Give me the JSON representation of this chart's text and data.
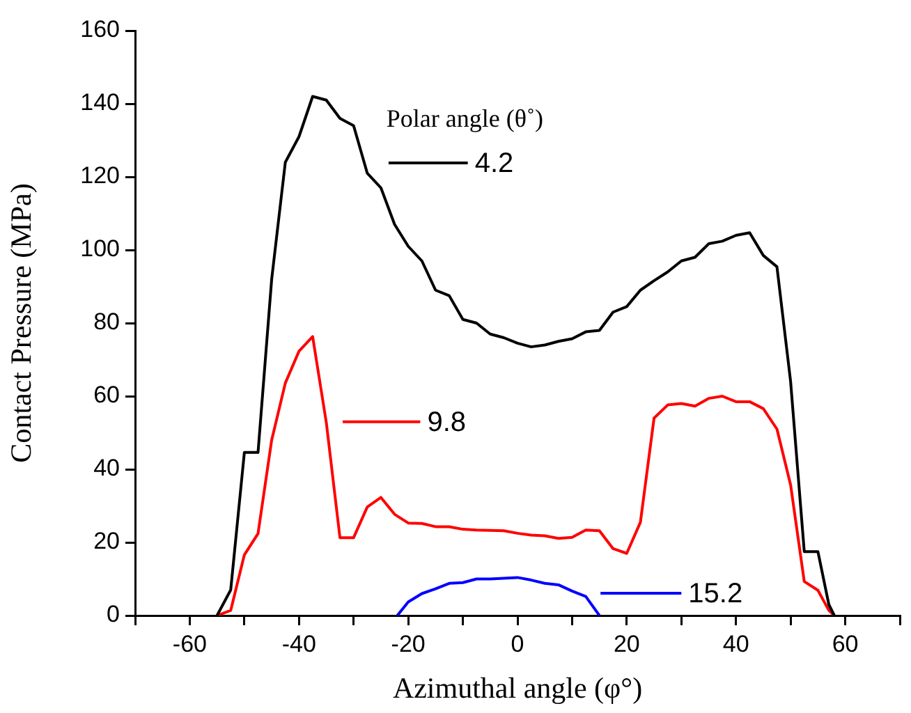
{
  "chart_data": {
    "type": "line",
    "xlabel": "Azimuthal angle (φ°)",
    "ylabel": "Contact Pressure (MPa)",
    "legend_title": "Polar angle (θ˚)",
    "xlim": [
      -70,
      70
    ],
    "ylim": [
      0,
      160
    ],
    "xticks": [
      {
        "value": -70,
        "label": null
      },
      -60,
      {
        "value": -50,
        "label": null
      },
      -40,
      {
        "value": -30,
        "label": null
      },
      -20,
      {
        "value": -10,
        "label": null
      },
      0,
      {
        "value": 10,
        "label": null
      },
      20,
      {
        "value": 30,
        "label": null
      },
      40,
      {
        "value": 50,
        "label": null
      },
      60,
      {
        "value": 70,
        "label": null
      }
    ],
    "yticks": [
      0,
      20,
      40,
      60,
      80,
      100,
      120,
      140,
      160
    ],
    "grid": false,
    "legend": "bottom right",
    "marker": "none",
    "line_style": "solid",
    "series": [
      {
        "name": "4.2",
        "color": "#000000",
        "x": [
          -55,
          -52.5,
          -50,
          -47.5,
          -45,
          -42.5,
          -40,
          -37.5,
          -35,
          -32.5,
          -30,
          -27.5,
          -25,
          -22.5,
          -20,
          -17.5,
          -15,
          -12.5,
          -10,
          -7.5,
          -5,
          -2.5,
          0,
          2.5,
          5,
          7.5,
          10,
          12.5,
          15,
          17.5,
          20,
          22.5,
          25,
          27.5,
          30,
          32.5,
          35,
          37.5,
          40,
          42.5,
          45,
          47.5,
          50,
          52.5,
          55,
          57,
          58
        ],
        "values": [
          0,
          7,
          44.6,
          44.6,
          92,
          124,
          131,
          142,
          141,
          136,
          134,
          121,
          117,
          107,
          101,
          97,
          89,
          87.5,
          81,
          80,
          77,
          76,
          74.5,
          73.5,
          74,
          75,
          75.7,
          77.6,
          78,
          83,
          84.5,
          89,
          91.6,
          94,
          97,
          98,
          101.7,
          102.4,
          104,
          104.7,
          98.5,
          95.4,
          64,
          17.5,
          17.5,
          3,
          0
        ]
      },
      {
        "name": "9.8",
        "color": "#ff0000",
        "x": [
          -55,
          -52.5,
          -50,
          -47.5,
          -45,
          -42.5,
          -40,
          -37.5,
          -35,
          -32.5,
          -30,
          -27.5,
          -25,
          -22.5,
          -20,
          -17.5,
          -15,
          -12.5,
          -10,
          -7.5,
          -5,
          -2.5,
          0,
          2.5,
          5,
          7.5,
          10,
          12.5,
          15,
          17.5,
          20,
          22.5,
          25,
          27.5,
          30,
          32.5,
          35,
          37.5,
          40,
          42.5,
          45,
          47.5,
          50,
          52.5,
          55,
          57,
          58
        ],
        "values": [
          0,
          1.4,
          16.6,
          22.4,
          48,
          63.6,
          72.3,
          76.3,
          52.8,
          21.3,
          21.3,
          29.7,
          32.3,
          27.7,
          25.3,
          25.2,
          24.3,
          24.3,
          23.6,
          23.4,
          23.3,
          23.2,
          22.5,
          22,
          21.8,
          21.1,
          21.4,
          23.4,
          23.2,
          18.3,
          17,
          25.5,
          54,
          57.6,
          58,
          57.3,
          59.4,
          60,
          58.5,
          58.5,
          56.6,
          51,
          35.7,
          9.3,
          6.9,
          1.4,
          0
        ]
      },
      {
        "name": "15.2",
        "color": "#0000ff",
        "x": [
          -22,
          -20,
          -17.5,
          -15,
          -12.5,
          -10,
          -7.5,
          -5,
          -2.5,
          0,
          2.5,
          5,
          7.5,
          10,
          12.5,
          15
        ],
        "values": [
          0,
          3.7,
          6,
          7.3,
          8.8,
          9,
          10,
          10,
          10.2,
          10.4,
          9.7,
          8.8,
          8.4,
          6.7,
          5.2,
          0
        ]
      }
    ]
  }
}
